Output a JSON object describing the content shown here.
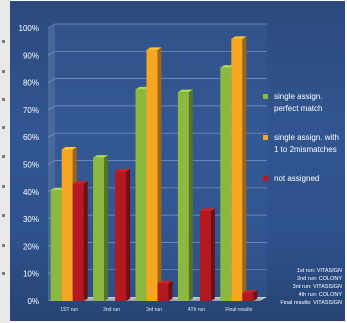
{
  "chart_data": {
    "type": "bar",
    "categories": [
      "1ST run",
      "2nd run",
      "3rd run",
      "4Th run",
      "Final results"
    ],
    "series": [
      {
        "name": "single assign. perfect match",
        "color": "#8db83f",
        "values": [
          40.5,
          52.5,
          77.5,
          76.5,
          85.5
        ]
      },
      {
        "name": "single assign. with 1 to 2mismatches",
        "color": "#f6a623",
        "values": [
          55.5,
          null,
          92,
          null,
          96
        ]
      },
      {
        "name": "not assigned",
        "color": "#b3191e",
        "values": [
          43,
          47.5,
          6.5,
          33,
          3
        ]
      }
    ],
    "ylim": [
      0,
      100
    ],
    "yticks": [
      "0%",
      "10%",
      "20%",
      "30%",
      "40%",
      "50%",
      "60%",
      "70%",
      "80%",
      "90%",
      "100%"
    ],
    "grid": true,
    "legend_position": "right",
    "legend": [
      {
        "lines": [
          "single assign.",
          "perfect match"
        ]
      },
      {
        "lines": [
          "single assign. with",
          "1 to 2mismatches"
        ]
      },
      {
        "lines": [
          "not assigned"
        ]
      }
    ],
    "footnote": [
      "1st run: VITASIGN",
      "2nd run: COLONY",
      "3rd run: VITASSIGN",
      "4th run: COLONY",
      "Final results: VITASSIGN"
    ]
  }
}
